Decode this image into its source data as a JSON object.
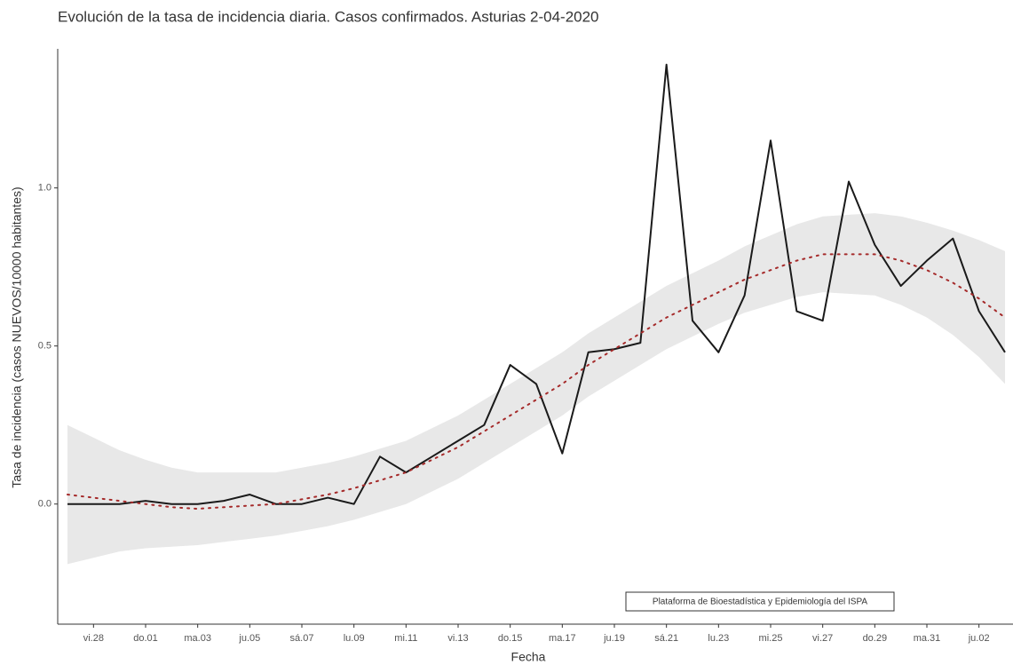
{
  "chart_data": {
    "type": "line",
    "title": "Evolución de la tasa de incidencia diaria. Casos confirmados. Asturias 2-04-2020",
    "x_label": "Fecha",
    "y_label": "Tasa de incidencia (casos NUEVOS/10000 habitantes)",
    "annotation": "Plataforma de Bioestadística y Epidemiología del ISPA",
    "categories": [
      null,
      "vi.28",
      null,
      "do.01",
      null,
      "ma.03",
      null,
      "ju.05",
      null,
      "sá.07",
      null,
      "lu.09",
      null,
      "mi.11",
      null,
      "vi.13",
      null,
      "do.15",
      null,
      "ma.17",
      null,
      "ju.19",
      null,
      "sá.21",
      null,
      "lu.23",
      null,
      "mi.25",
      null,
      "vi.27",
      null,
      "do.29",
      null,
      "ma.31",
      null,
      "ju.02",
      null
    ],
    "series": [
      {
        "color": "#1a1a1a",
        "values": [
          0.0,
          0.0,
          0.0,
          0.01,
          0.0,
          0.0,
          0.01,
          0.03,
          0.0,
          0.0,
          0.02,
          0.0,
          0.15,
          0.1,
          0.15,
          0.2,
          0.25,
          0.44,
          0.38,
          0.16,
          0.48,
          0.49,
          0.51,
          1.39,
          0.58,
          0.48,
          0.66,
          1.15,
          0.61,
          0.58,
          1.02,
          0.82,
          0.69,
          0.77,
          0.84,
          0.61,
          0.48
        ]
      },
      {
        "color": "#a52a2a",
        "dash": "dotted",
        "values": [
          0.03,
          0.02,
          0.01,
          0.0,
          -0.01,
          -0.015,
          -0.01,
          -0.005,
          0.0,
          0.015,
          0.03,
          0.05,
          0.075,
          0.1,
          0.14,
          0.18,
          0.23,
          0.28,
          0.33,
          0.38,
          0.44,
          0.49,
          0.54,
          0.59,
          0.63,
          0.67,
          0.71,
          0.74,
          0.77,
          0.79,
          0.79,
          0.79,
          0.77,
          0.74,
          0.7,
          0.65,
          0.59
        ]
      }
    ],
    "band": {
      "color": "#e8e8e8",
      "upper": [
        0.25,
        0.21,
        0.17,
        0.14,
        0.115,
        0.1,
        0.1,
        0.1,
        0.1,
        0.115,
        0.13,
        0.15,
        0.175,
        0.2,
        0.24,
        0.28,
        0.33,
        0.38,
        0.43,
        0.48,
        0.54,
        0.59,
        0.64,
        0.69,
        0.73,
        0.77,
        0.815,
        0.85,
        0.885,
        0.91,
        0.915,
        0.92,
        0.91,
        0.89,
        0.865,
        0.835,
        0.8
      ],
      "lower": [
        -0.19,
        -0.17,
        -0.15,
        -0.14,
        -0.135,
        -0.13,
        -0.12,
        -0.11,
        -0.1,
        -0.085,
        -0.07,
        -0.05,
        -0.025,
        0.0,
        0.04,
        0.08,
        0.13,
        0.18,
        0.23,
        0.28,
        0.34,
        0.39,
        0.44,
        0.49,
        0.53,
        0.57,
        0.605,
        0.63,
        0.655,
        0.67,
        0.665,
        0.66,
        0.63,
        0.59,
        0.535,
        0.465,
        0.38
      ]
    },
    "ylim": [
      -0.38,
      1.44
    ],
    "yticks": [
      {
        "value": 0,
        "label": "0.0"
      },
      0.5,
      {
        "value": 1,
        "label": "1.0"
      }
    ]
  }
}
